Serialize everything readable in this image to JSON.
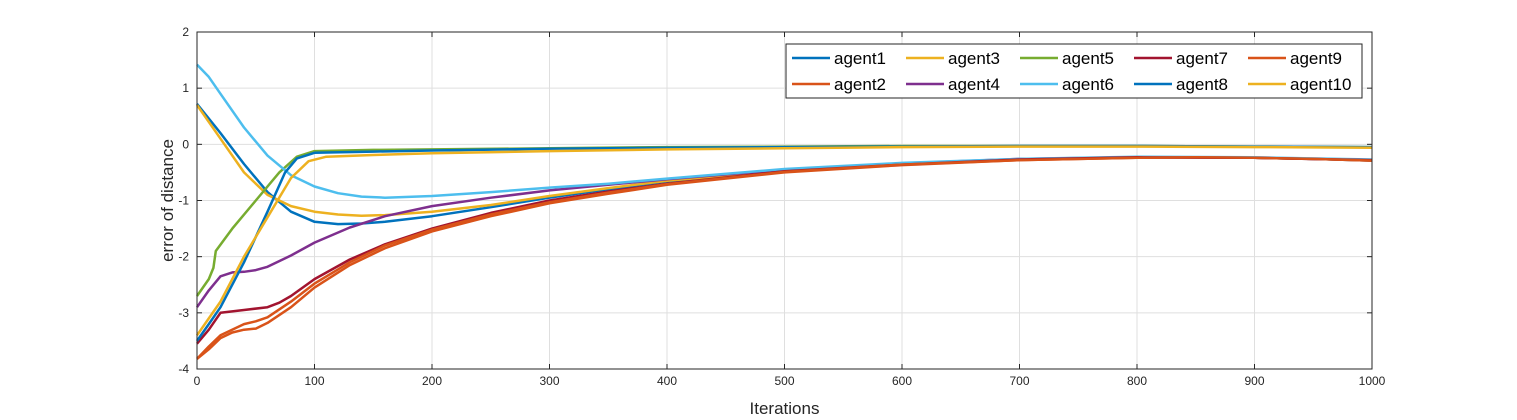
{
  "chart_data": {
    "type": "line",
    "xlabel": "Iterations",
    "ylabel": "error of distance",
    "xlim": [
      0,
      1000
    ],
    "ylim": [
      -4,
      2
    ],
    "xticks": [
      "0",
      "100",
      "200",
      "300",
      "400",
      "500",
      "600",
      "700",
      "800",
      "900",
      "1000"
    ],
    "yticks": [
      "2",
      "1",
      "0",
      "-1",
      "-2",
      "-3",
      "-4"
    ],
    "grid": true,
    "legend_position": "top-right",
    "series": [
      {
        "name": "agent1",
        "color": "#0072BD",
        "points": [
          [
            0,
            0.72
          ],
          [
            20,
            0.2
          ],
          [
            40,
            -0.35
          ],
          [
            60,
            -0.85
          ],
          [
            80,
            -1.2
          ],
          [
            100,
            -1.38
          ],
          [
            120,
            -1.42
          ],
          [
            140,
            -1.41
          ],
          [
            160,
            -1.38
          ],
          [
            200,
            -1.28
          ],
          [
            250,
            -1.12
          ],
          [
            300,
            -0.95
          ],
          [
            350,
            -0.8
          ],
          [
            400,
            -0.66
          ],
          [
            500,
            -0.48
          ],
          [
            600,
            -0.36
          ],
          [
            700,
            -0.27
          ],
          [
            800,
            -0.23
          ],
          [
            850,
            -0.23
          ],
          [
            900,
            -0.24
          ],
          [
            950,
            -0.26
          ],
          [
            1000,
            -0.29
          ]
        ]
      },
      {
        "name": "agent2",
        "color": "#D95319",
        "points": [
          [
            0,
            -3.82
          ],
          [
            10,
            -3.65
          ],
          [
            20,
            -3.45
          ],
          [
            30,
            -3.35
          ],
          [
            40,
            -3.3
          ],
          [
            50,
            -3.28
          ],
          [
            60,
            -3.18
          ],
          [
            80,
            -2.9
          ],
          [
            100,
            -2.55
          ],
          [
            130,
            -2.15
          ],
          [
            160,
            -1.85
          ],
          [
            200,
            -1.55
          ],
          [
            250,
            -1.28
          ],
          [
            300,
            -1.05
          ],
          [
            350,
            -0.88
          ],
          [
            400,
            -0.72
          ],
          [
            500,
            -0.5
          ],
          [
            600,
            -0.37
          ],
          [
            700,
            -0.28
          ],
          [
            800,
            -0.24
          ],
          [
            850,
            -0.23
          ],
          [
            900,
            -0.24
          ],
          [
            950,
            -0.26
          ],
          [
            1000,
            -0.29
          ]
        ]
      },
      {
        "name": "agent3",
        "color": "#EDB120",
        "points": [
          [
            0,
            0.7
          ],
          [
            20,
            0.1
          ],
          [
            40,
            -0.5
          ],
          [
            60,
            -0.9
          ],
          [
            80,
            -1.1
          ],
          [
            100,
            -1.2
          ],
          [
            120,
            -1.25
          ],
          [
            140,
            -1.27
          ],
          [
            160,
            -1.26
          ],
          [
            200,
            -1.2
          ],
          [
            250,
            -1.08
          ],
          [
            300,
            -0.92
          ],
          [
            350,
            -0.78
          ],
          [
            400,
            -0.65
          ],
          [
            500,
            -0.47
          ],
          [
            600,
            -0.35
          ],
          [
            700,
            -0.27
          ],
          [
            800,
            -0.23
          ],
          [
            900,
            -0.24
          ],
          [
            1000,
            -0.28
          ]
        ]
      },
      {
        "name": "agent4",
        "color": "#7E2F8E",
        "points": [
          [
            0,
            -2.9
          ],
          [
            10,
            -2.6
          ],
          [
            20,
            -2.35
          ],
          [
            30,
            -2.28
          ],
          [
            40,
            -2.27
          ],
          [
            50,
            -2.24
          ],
          [
            60,
            -2.18
          ],
          [
            80,
            -1.98
          ],
          [
            100,
            -1.75
          ],
          [
            130,
            -1.48
          ],
          [
            160,
            -1.28
          ],
          [
            200,
            -1.1
          ],
          [
            250,
            -0.95
          ],
          [
            300,
            -0.82
          ],
          [
            350,
            -0.72
          ],
          [
            400,
            -0.62
          ],
          [
            500,
            -0.45
          ],
          [
            600,
            -0.34
          ],
          [
            700,
            -0.26
          ],
          [
            800,
            -0.23
          ],
          [
            900,
            -0.24
          ],
          [
            1000,
            -0.28
          ]
        ]
      },
      {
        "name": "agent5",
        "color": "#77AC30",
        "points": [
          [
            0,
            -2.7
          ],
          [
            10,
            -2.4
          ],
          [
            14,
            -2.2
          ],
          [
            16,
            -1.9
          ],
          [
            30,
            -1.5
          ],
          [
            50,
            -1.0
          ],
          [
            70,
            -0.5
          ],
          [
            85,
            -0.22
          ],
          [
            100,
            -0.12
          ],
          [
            150,
            -0.1
          ],
          [
            200,
            -0.09
          ],
          [
            300,
            -0.07
          ],
          [
            400,
            -0.05
          ],
          [
            500,
            -0.04
          ],
          [
            600,
            -0.03
          ],
          [
            700,
            -0.03
          ],
          [
            800,
            -0.03
          ],
          [
            900,
            -0.04
          ],
          [
            1000,
            -0.05
          ]
        ]
      },
      {
        "name": "agent6",
        "color": "#4DBEEE",
        "points": [
          [
            0,
            1.42
          ],
          [
            10,
            1.2
          ],
          [
            20,
            0.9
          ],
          [
            40,
            0.3
          ],
          [
            60,
            -0.2
          ],
          [
            80,
            -0.55
          ],
          [
            100,
            -0.75
          ],
          [
            120,
            -0.87
          ],
          [
            140,
            -0.93
          ],
          [
            160,
            -0.95
          ],
          [
            200,
            -0.92
          ],
          [
            250,
            -0.85
          ],
          [
            300,
            -0.77
          ],
          [
            350,
            -0.7
          ],
          [
            400,
            -0.61
          ],
          [
            500,
            -0.44
          ],
          [
            600,
            -0.33
          ],
          [
            700,
            -0.26
          ],
          [
            800,
            -0.22
          ],
          [
            900,
            -0.23
          ],
          [
            1000,
            -0.27
          ]
        ]
      },
      {
        "name": "agent7",
        "color": "#A2142F",
        "points": [
          [
            0,
            -3.55
          ],
          [
            10,
            -3.3
          ],
          [
            20,
            -3.0
          ],
          [
            40,
            -2.95
          ],
          [
            60,
            -2.9
          ],
          [
            70,
            -2.82
          ],
          [
            80,
            -2.7
          ],
          [
            100,
            -2.4
          ],
          [
            130,
            -2.05
          ],
          [
            160,
            -1.78
          ],
          [
            200,
            -1.5
          ],
          [
            250,
            -1.22
          ],
          [
            300,
            -1.0
          ],
          [
            350,
            -0.84
          ],
          [
            400,
            -0.7
          ],
          [
            500,
            -0.48
          ],
          [
            600,
            -0.36
          ],
          [
            700,
            -0.27
          ],
          [
            800,
            -0.23
          ],
          [
            900,
            -0.24
          ],
          [
            1000,
            -0.28
          ]
        ]
      },
      {
        "name": "agent8",
        "color": "#0072BD",
        "points": [
          [
            0,
            -3.5
          ],
          [
            10,
            -3.2
          ],
          [
            20,
            -2.9
          ],
          [
            40,
            -2.1
          ],
          [
            60,
            -1.2
          ],
          [
            75,
            -0.5
          ],
          [
            85,
            -0.25
          ],
          [
            100,
            -0.15
          ],
          [
            150,
            -0.13
          ],
          [
            200,
            -0.11
          ],
          [
            300,
            -0.08
          ],
          [
            400,
            -0.06
          ],
          [
            500,
            -0.05
          ],
          [
            600,
            -0.04
          ],
          [
            700,
            -0.03
          ],
          [
            800,
            -0.03
          ],
          [
            900,
            -0.04
          ],
          [
            1000,
            -0.05
          ]
        ]
      },
      {
        "name": "agent9",
        "color": "#D95319",
        "points": [
          [
            0,
            -3.82
          ],
          [
            10,
            -3.6
          ],
          [
            20,
            -3.4
          ],
          [
            40,
            -3.2
          ],
          [
            50,
            -3.15
          ],
          [
            60,
            -3.08
          ],
          [
            80,
            -2.8
          ],
          [
            100,
            -2.48
          ],
          [
            130,
            -2.1
          ],
          [
            160,
            -1.8
          ],
          [
            200,
            -1.52
          ],
          [
            250,
            -1.25
          ],
          [
            300,
            -1.03
          ],
          [
            350,
            -0.86
          ],
          [
            400,
            -0.71
          ],
          [
            500,
            -0.49
          ],
          [
            600,
            -0.36
          ],
          [
            700,
            -0.28
          ],
          [
            800,
            -0.24
          ],
          [
            850,
            -0.23
          ],
          [
            900,
            -0.24
          ],
          [
            950,
            -0.26
          ],
          [
            1000,
            -0.29
          ]
        ]
      },
      {
        "name": "agent10",
        "color": "#EDB120",
        "points": [
          [
            0,
            -3.4
          ],
          [
            10,
            -3.1
          ],
          [
            20,
            -2.8
          ],
          [
            40,
            -2.0
          ],
          [
            60,
            -1.3
          ],
          [
            80,
            -0.6
          ],
          [
            95,
            -0.3
          ],
          [
            110,
            -0.22
          ],
          [
            150,
            -0.19
          ],
          [
            200,
            -0.16
          ],
          [
            300,
            -0.12
          ],
          [
            400,
            -0.09
          ],
          [
            500,
            -0.07
          ],
          [
            600,
            -0.05
          ],
          [
            700,
            -0.04
          ],
          [
            800,
            -0.04
          ],
          [
            900,
            -0.05
          ],
          [
            1000,
            -0.06
          ]
        ]
      }
    ]
  }
}
